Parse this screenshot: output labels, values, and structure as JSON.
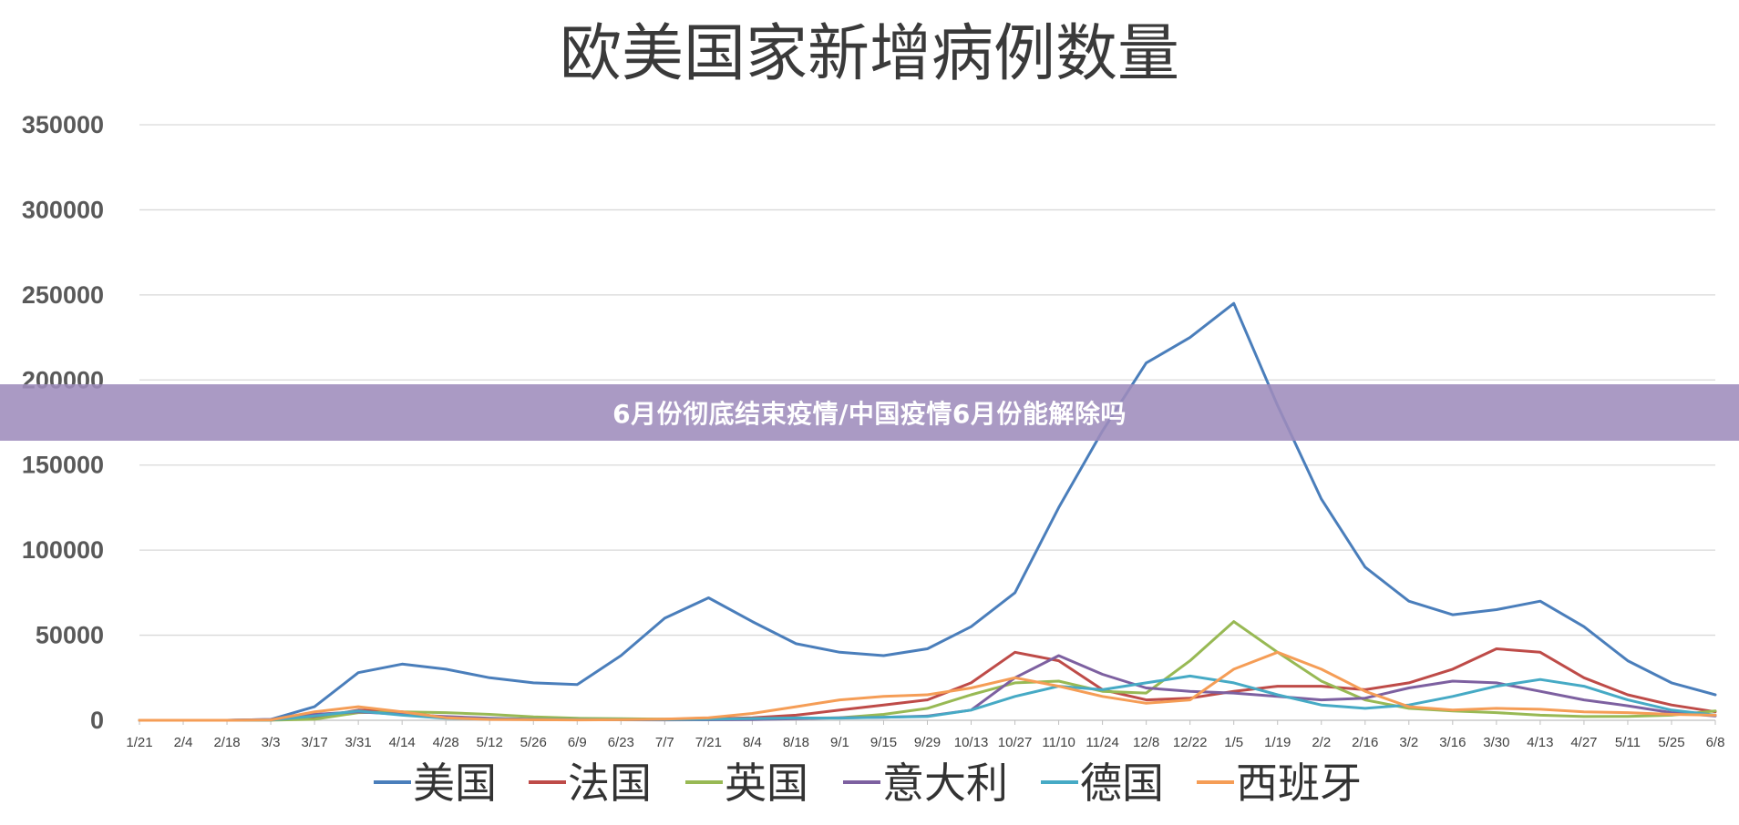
{
  "banner": {
    "text": "6月份彻底结束疫情/中国疫情6月份能解除吗"
  },
  "chart_data": {
    "type": "line",
    "title": "欧美国家新增病例数量",
    "xlabel": "",
    "ylabel": "",
    "ylim": [
      0,
      350000
    ],
    "yticks": [
      0,
      50000,
      100000,
      150000,
      200000,
      250000,
      300000,
      350000
    ],
    "xticks": [
      "1/21",
      "2/4",
      "2/18",
      "3/3",
      "3/17",
      "3/31",
      "4/14",
      "4/28",
      "5/12",
      "5/26",
      "6/9",
      "6/23",
      "7/7",
      "7/21",
      "8/4",
      "8/18",
      "9/1",
      "9/15",
      "9/29",
      "10/13",
      "10/27",
      "11/10",
      "11/24",
      "12/8",
      "12/22",
      "1/5",
      "1/19",
      "2/2",
      "2/16",
      "3/2",
      "3/16",
      "3/30",
      "4/13",
      "4/27",
      "5/11",
      "5/25",
      "6/8"
    ],
    "grid": true,
    "legend_position": "bottom",
    "series": [
      {
        "name": "美国",
        "color": "#4a7ebb",
        "x": [
          "1/21",
          "2/4",
          "2/18",
          "3/3",
          "3/17",
          "3/31",
          "4/14",
          "4/28",
          "5/12",
          "5/26",
          "6/9",
          "6/23",
          "7/7",
          "7/21",
          "8/4",
          "8/18",
          "9/1",
          "9/15",
          "9/29",
          "10/13",
          "10/27",
          "11/10",
          "11/24",
          "12/8",
          "12/22",
          "1/5",
          "1/19",
          "2/2",
          "2/16",
          "3/2",
          "3/16",
          "3/30",
          "4/13",
          "4/27",
          "5/11",
          "5/25",
          "6/8"
        ],
        "values": [
          0,
          0,
          0,
          500,
          8000,
          28000,
          33000,
          30000,
          25000,
          22000,
          21000,
          38000,
          60000,
          72000,
          58000,
          45000,
          40000,
          38000,
          42000,
          55000,
          75000,
          125000,
          170000,
          210000,
          225000,
          245000,
          185000,
          130000,
          90000,
          70000,
          62000,
          65000,
          70000,
          55000,
          35000,
          22000,
          15000
        ]
      },
      {
        "name": "法国",
        "color": "#be4b48",
        "x": [
          "1/21",
          "2/4",
          "2/18",
          "3/3",
          "3/17",
          "3/31",
          "4/14",
          "4/28",
          "5/12",
          "5/26",
          "6/9",
          "6/23",
          "7/7",
          "7/21",
          "8/4",
          "8/18",
          "9/1",
          "9/15",
          "9/29",
          "10/13",
          "10/27",
          "11/10",
          "11/24",
          "12/8",
          "12/22",
          "1/5",
          "1/19",
          "2/2",
          "2/16",
          "3/2",
          "3/16",
          "3/30",
          "4/13",
          "4/27",
          "5/11",
          "5/25",
          "6/8"
        ],
        "values": [
          0,
          0,
          0,
          100,
          1500,
          6000,
          5000,
          1500,
          800,
          500,
          400,
          500,
          600,
          800,
          1500,
          3000,
          6000,
          9000,
          12000,
          22000,
          40000,
          35000,
          18000,
          12000,
          13000,
          17000,
          20000,
          20000,
          18000,
          22000,
          30000,
          42000,
          40000,
          25000,
          15000,
          9000,
          5000
        ]
      },
      {
        "name": "英国",
        "color": "#98b954",
        "x": [
          "1/21",
          "2/4",
          "2/18",
          "3/3",
          "3/17",
          "3/31",
          "4/14",
          "4/28",
          "5/12",
          "5/26",
          "6/9",
          "6/23",
          "7/7",
          "7/21",
          "8/4",
          "8/18",
          "9/1",
          "9/15",
          "9/29",
          "10/13",
          "10/27",
          "11/10",
          "11/24",
          "12/8",
          "12/22",
          "1/5",
          "1/19",
          "2/2",
          "2/16",
          "3/2",
          "3/16",
          "3/30",
          "4/13",
          "4/27",
          "5/11",
          "5/25",
          "6/8"
        ],
        "values": [
          0,
          0,
          0,
          50,
          600,
          4500,
          5000,
          4500,
          3500,
          2000,
          1200,
          900,
          700,
          700,
          900,
          1100,
          1500,
          3500,
          7000,
          15000,
          22000,
          23000,
          17000,
          16000,
          35000,
          58000,
          40000,
          23000,
          12000,
          7000,
          5500,
          4500,
          3000,
          2200,
          2300,
          3000,
          5500
        ]
      },
      {
        "name": "意大利",
        "color": "#7d60a0",
        "x": [
          "1/21",
          "2/4",
          "2/18",
          "3/3",
          "3/17",
          "3/31",
          "4/14",
          "4/28",
          "5/12",
          "5/26",
          "6/9",
          "6/23",
          "7/7",
          "7/21",
          "8/4",
          "8/18",
          "9/1",
          "9/15",
          "9/29",
          "10/13",
          "10/27",
          "11/10",
          "11/24",
          "12/8",
          "12/22",
          "1/5",
          "1/19",
          "2/2",
          "2/16",
          "3/2",
          "3/16",
          "3/30",
          "4/13",
          "4/27",
          "5/11",
          "5/25",
          "6/8"
        ],
        "values": [
          0,
          0,
          0,
          500,
          3500,
          5000,
          3500,
          2200,
          1200,
          600,
          300,
          250,
          200,
          250,
          400,
          900,
          1500,
          1700,
          2500,
          6000,
          25000,
          38000,
          27000,
          19000,
          17000,
          16000,
          14000,
          12000,
          13000,
          19000,
          23000,
          22000,
          17000,
          12000,
          8500,
          4500,
          2500
        ]
      },
      {
        "name": "德国",
        "color": "#46aac5",
        "x": [
          "1/21",
          "2/4",
          "2/18",
          "3/3",
          "3/17",
          "3/31",
          "4/14",
          "4/28",
          "5/12",
          "5/26",
          "6/9",
          "6/23",
          "7/7",
          "7/21",
          "8/4",
          "8/18",
          "9/1",
          "9/15",
          "9/29",
          "10/13",
          "10/27",
          "11/10",
          "11/24",
          "12/8",
          "12/22",
          "1/5",
          "1/19",
          "2/2",
          "2/16",
          "3/2",
          "3/16",
          "3/30",
          "4/13",
          "4/27",
          "5/11",
          "5/25",
          "6/8"
        ],
        "values": [
          0,
          0,
          0,
          100,
          2500,
          5500,
          3000,
          1200,
          700,
          500,
          400,
          400,
          450,
          600,
          1000,
          1400,
          1300,
          1800,
          2200,
          6000,
          14000,
          20000,
          18000,
          22000,
          26000,
          22000,
          15000,
          9000,
          7000,
          9000,
          14000,
          20000,
          24000,
          20000,
          12000,
          6000,
          3000
        ]
      },
      {
        "name": "西班牙",
        "color": "#f59d56",
        "x": [
          "1/21",
          "2/4",
          "2/18",
          "3/3",
          "3/17",
          "3/31",
          "4/14",
          "4/28",
          "5/12",
          "5/26",
          "6/9",
          "6/23",
          "7/7",
          "7/21",
          "8/4",
          "8/18",
          "9/1",
          "9/15",
          "9/29",
          "10/13",
          "10/27",
          "11/10",
          "11/24",
          "12/8",
          "12/22",
          "1/5",
          "1/19",
          "2/2",
          "2/16",
          "3/2",
          "3/16",
          "3/30",
          "4/13",
          "4/27",
          "5/11",
          "5/25",
          "6/8"
        ],
        "values": [
          0,
          0,
          0,
          200,
          5000,
          8000,
          5000,
          1500,
          500,
          300,
          200,
          300,
          700,
          1500,
          4000,
          8000,
          12000,
          14000,
          15000,
          19000,
          25000,
          20000,
          14000,
          10000,
          12000,
          30000,
          40000,
          30000,
          17000,
          8000,
          6000,
          7000,
          6500,
          5000,
          4500,
          3500,
          3000
        ]
      }
    ]
  }
}
